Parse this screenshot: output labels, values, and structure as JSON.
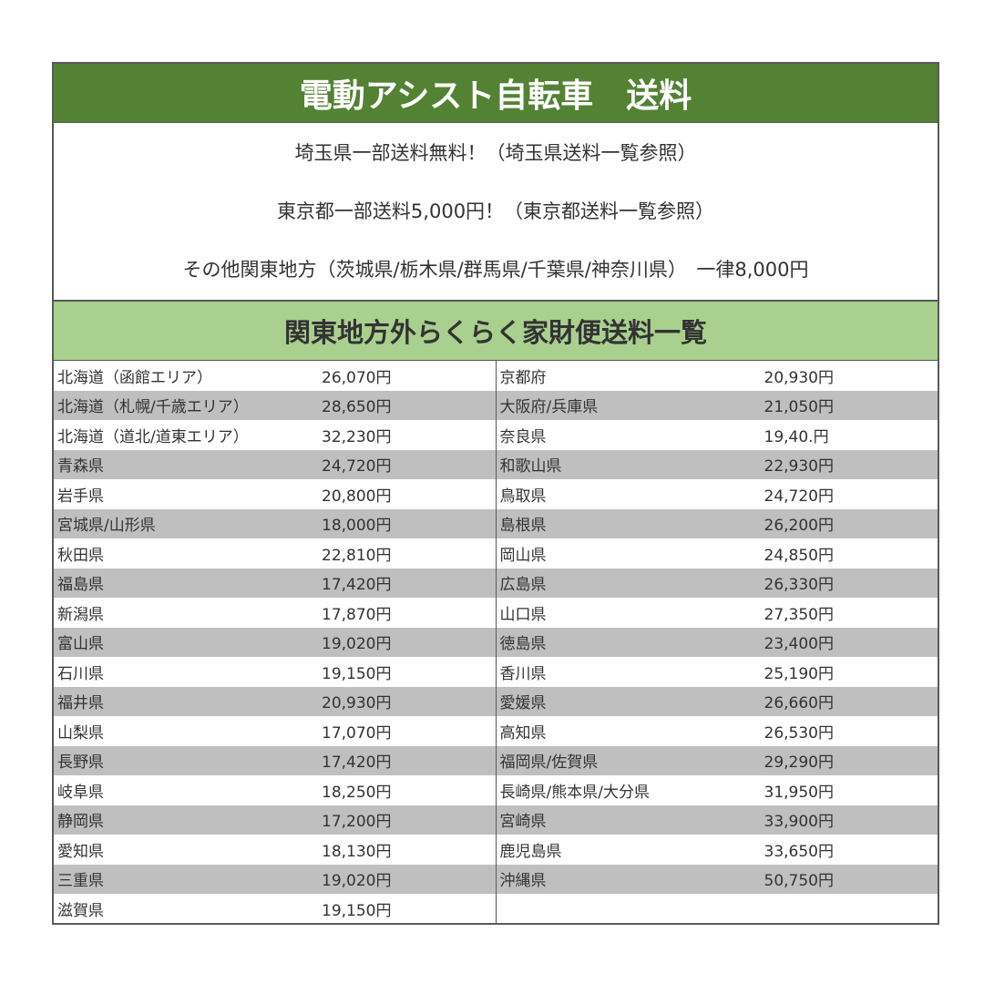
{
  "title": "電動アシスト自転車　送料",
  "info": [
    "埼玉県一部送料無料！（埼玉県送料一覧参照）",
    "東京都一部送料5,000円！（東京都送料一覧参照）",
    "その他関東地方（茨城県/栃木県/群馬県/千葉県/神奈川県）　一律8,000円"
  ],
  "subtitle": "関東地方外らくらく家財便送料一覧",
  "colors": {
    "header_green": "#548235",
    "subheader_green": "#a9d08e",
    "row_gray": "#bfbfbf"
  },
  "left": [
    {
      "name": "北海道（函館エリア）",
      "price": "26,070円"
    },
    {
      "name": "北海道（札幌/千歳エリア）",
      "price": "28,650円"
    },
    {
      "name": "北海道（道北/道東エリア）",
      "price": "32,230円"
    },
    {
      "name": "青森県",
      "price": "24,720円"
    },
    {
      "name": "岩手県",
      "price": "20,800円"
    },
    {
      "name": "宮城県/山形県",
      "price": "18,000円"
    },
    {
      "name": "秋田県",
      "price": "22,810円"
    },
    {
      "name": "福島県",
      "price": "17,420円"
    },
    {
      "name": "新潟県",
      "price": "17,870円"
    },
    {
      "name": "富山県",
      "price": "19,020円"
    },
    {
      "name": "石川県",
      "price": "19,150円"
    },
    {
      "name": "福井県",
      "price": "20,930円"
    },
    {
      "name": "山梨県",
      "price": "17,070円"
    },
    {
      "name": "長野県",
      "price": "17,420円"
    },
    {
      "name": "岐阜県",
      "price": "18,250円"
    },
    {
      "name": "静岡県",
      "price": "17,200円"
    },
    {
      "name": "愛知県",
      "price": "18,130円"
    },
    {
      "name": "三重県",
      "price": "19,020円"
    },
    {
      "name": "滋賀県",
      "price": "19,150円"
    }
  ],
  "right": [
    {
      "name": "京都府",
      "price": "20,930円"
    },
    {
      "name": "大阪府/兵庫県",
      "price": "21,050円"
    },
    {
      "name": "奈良県",
      "price": "19,40.円"
    },
    {
      "name": "和歌山県",
      "price": "22,930円"
    },
    {
      "name": "鳥取県",
      "price": "24,720円"
    },
    {
      "name": "島根県",
      "price": "26,200円"
    },
    {
      "name": "岡山県",
      "price": "24,850円"
    },
    {
      "name": "広島県",
      "price": "26,330円"
    },
    {
      "name": "山口県",
      "price": "27,350円"
    },
    {
      "name": "徳島県",
      "price": "23,400円"
    },
    {
      "name": "香川県",
      "price": "25,190円"
    },
    {
      "name": "愛媛県",
      "price": "26,660円"
    },
    {
      "name": "高知県",
      "price": "26,530円"
    },
    {
      "name": "福岡県/佐賀県",
      "price": "29,290円"
    },
    {
      "name": "長崎県/熊本県/大分県",
      "price": "31,950円"
    },
    {
      "name": "宮崎県",
      "price": "33,900円"
    },
    {
      "name": "鹿児島県",
      "price": "33,650円"
    },
    {
      "name": "沖縄県",
      "price": "50,750円"
    }
  ]
}
